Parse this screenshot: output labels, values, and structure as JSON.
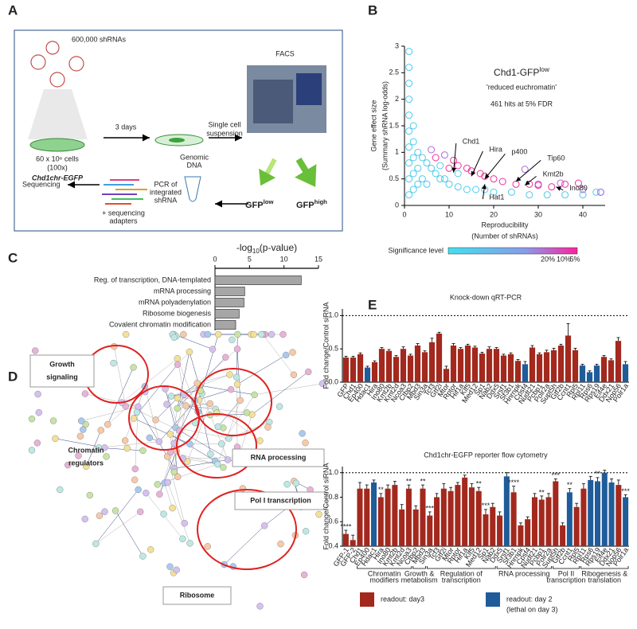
{
  "panel_labels": [
    "A",
    "B",
    "C",
    "D",
    "E"
  ],
  "panel_a": {
    "library": "600,000 shRNAs",
    "cells": "60 x 10⁶ cells",
    "coverage": "(100x)",
    "cell_line": "Chd1chr-EGFP",
    "incubation": "3 days",
    "dissociation": [
      "Single cell",
      "suspension"
    ],
    "facs": "FACS",
    "gfp_low": {
      "text": "GFP",
      "sup": "low"
    },
    "gfp_high": {
      "text": "GFP",
      "sup": "high"
    },
    "genomic": [
      "Genomic",
      "DNA"
    ],
    "pcr": [
      "PCR of",
      "integrated",
      "shRNA"
    ],
    "adapters": [
      "+ sequencing",
      "adapters"
    ],
    "sequencing": "Sequencing"
  },
  "panel_d": {
    "clusters": [
      {
        "lines": [
          "Growth",
          "signaling"
        ],
        "boxed": true
      },
      {
        "lines": [
          "Chromatin",
          "regulators"
        ],
        "boxed": false
      },
      {
        "lines": [
          "RNA processing"
        ],
        "boxed": true
      },
      {
        "lines": [
          "Pol I transcription"
        ],
        "boxed": true
      },
      {
        "lines": [
          "Ribosome"
        ],
        "boxed": true
      }
    ]
  },
  "chart_data": [
    {
      "type": "scatter",
      "title": {
        "text": "Chd1-GFP",
        "sup": "low"
      },
      "subtitle": "'reduced euchromatin'",
      "annotation": "461 hits at 5% FDR",
      "ylabel": [
        "Gene effect size",
        "(Summary shRNA log-odds)"
      ],
      "xlabel": [
        "Reproducibility",
        "(Number of shRNAs)"
      ],
      "xlim": [
        0,
        45
      ],
      "xticks": [
        0,
        10,
        20,
        30,
        40
      ],
      "ylim": [
        0,
        3
      ],
      "yticks": [
        0,
        0.5,
        1,
        1.5,
        2,
        2.5,
        3
      ],
      "series": [
        {
          "color": "#4fc9ef",
          "x": [
            1,
            1,
            1,
            1,
            1,
            1,
            1,
            1,
            1,
            1,
            2,
            2,
            2,
            2,
            2,
            3,
            3,
            3,
            4,
            4,
            5,
            5,
            6,
            7,
            8,
            9,
            10,
            12,
            14,
            16,
            18,
            20,
            24,
            28,
            32,
            36,
            40,
            43,
            44,
            12,
            8
          ],
          "values": [
            2.9,
            2.6,
            2.3,
            2.0,
            1.7,
            1.4,
            1.1,
            0.8,
            0.5,
            0.2,
            1.5,
            1.2,
            0.9,
            0.6,
            0.3,
            1.0,
            0.7,
            0.4,
            0.9,
            0.5,
            0.8,
            0.4,
            0.7,
            0.6,
            0.5,
            0.5,
            0.4,
            0.35,
            0.3,
            0.3,
            0.3,
            0.25,
            0.25,
            0.2,
            0.2,
            0.2,
            0.2,
            0.25,
            0.25,
            0.6,
            0.75
          ]
        },
        {
          "color": "#b066e0",
          "x": [
            6,
            9,
            27,
            30,
            35,
            40,
            44
          ],
          "values": [
            1.05,
            0.95,
            0.68,
            0.4,
            0.42,
            0.3,
            0.25
          ]
        },
        {
          "color": "#f0309a",
          "x": [
            7,
            10,
            11,
            12,
            14,
            15,
            17,
            18,
            20,
            22,
            25,
            28,
            30,
            33,
            36,
            39
          ],
          "values": [
            0.9,
            0.7,
            0.85,
            0.75,
            0.7,
            0.65,
            0.6,
            0.55,
            0.5,
            0.45,
            0.4,
            0.4,
            0.38,
            0.35,
            0.4,
            0.42
          ]
        }
      ],
      "genes": [
        {
          "label": "Chd1",
          "x": 11,
          "y": 0.62
        },
        {
          "label": "Hira",
          "x": 15,
          "y": 0.55
        },
        {
          "label": "p400",
          "x": 18,
          "y": 0.5
        },
        {
          "label": "Tip60",
          "x": 25,
          "y": 0.45
        },
        {
          "label": "Kmt2b",
          "x": 27,
          "y": 0.38
        },
        {
          "label": "Ino80",
          "x": 34,
          "y": 0.35
        },
        {
          "label": "Hat1",
          "x": 18,
          "y": 0.4
        }
      ],
      "colorbar": {
        "title": "Significance level",
        "ticks": [
          "20%",
          "10%",
          "5%"
        ]
      }
    },
    {
      "type": "hbar",
      "xlabel": {
        "text": "-log",
        "sub": "10",
        "rest": "(p-value)"
      },
      "categories": [
        "Reg. of transcription, DNA-templated",
        "mRNA processing",
        "mRNA polyadenylation",
        "Ribosome biogenesis",
        "Covalent chromatin modification"
      ],
      "values": [
        12.5,
        4.3,
        4.2,
        3.5,
        3.0
      ],
      "color": "#a6a6a6",
      "xlim": [
        0,
        15
      ],
      "xticks": [
        0,
        5,
        10,
        15
      ]
    },
    {
      "type": "bar",
      "title": "Knock-down qRT-PCR",
      "ylabel": "Fold change/Control siRNA",
      "reference_line": 1.0,
      "ylim": [
        0,
        1.1
      ],
      "yticks": [
        {
          "value": 0,
          "label": "0.0"
        },
        0.5,
        {
          "value": 1,
          "label": "1.0"
        }
      ],
      "categories": [
        "GFP",
        "Chd1",
        "Ep400",
        "Hdac1",
        "Hira",
        "Ino80",
        "Kmt2b",
        "Kmt2d",
        "Ncoa3",
        "Ctbp2",
        "Mbd3",
        "Sin3a",
        "Tcf3",
        "Gtf2i",
        "Mtor",
        "Rptor",
        "Hif1a",
        "Klf5",
        "Med12",
        "Sp1",
        "Nab2",
        "Ddx5",
        "Srsf1",
        "Sf3b1",
        "Hnrnpk",
        "Cpsf4",
        "Nudt21",
        "Pcbp1",
        "Polr2a",
        "Supt5h",
        "Gtf2b",
        "Ccnt1",
        "Rpl5",
        "Rpl11",
        "Rps6",
        "Rps19",
        "Eif4e",
        "Ddx21",
        "Nop56",
        "Polr1a"
      ],
      "values": [
        0.37,
        0.37,
        0.42,
        0.22,
        0.3,
        0.5,
        0.47,
        0.38,
        0.5,
        0.4,
        0.55,
        0.45,
        0.6,
        0.73,
        0.2,
        0.55,
        0.5,
        0.55,
        0.52,
        0.43,
        0.5,
        0.5,
        0.4,
        0.42,
        0.32,
        0.27,
        0.52,
        0.42,
        0.45,
        0.48,
        0.55,
        0.7,
        0.48,
        0.25,
        0.15,
        0.25,
        0.38,
        0.33,
        0.62,
        0.27
      ],
      "errors": [
        0.02,
        0.02,
        0.02,
        0.02,
        0.02,
        0.02,
        0.02,
        0.02,
        0.03,
        0.02,
        0.03,
        0.02,
        0.06,
        0.02,
        0.04,
        0.03,
        0.02,
        0.02,
        0.02,
        0.02,
        0.03,
        0.02,
        0.02,
        0.02,
        0.02,
        0.04,
        0.03,
        0.02,
        0.03,
        0.03,
        0.02,
        0.18,
        0.03,
        0.02,
        0.02,
        0.02,
        0.02,
        0.02,
        0.05,
        0.04
      ],
      "colors": [
        "#a3281d",
        "#a3281d",
        "#a3281d",
        "#1f5c99",
        "#a3281d",
        "#a3281d",
        "#a3281d",
        "#a3281d",
        "#a3281d",
        "#a3281d",
        "#a3281d",
        "#a3281d",
        "#a3281d",
        "#a3281d",
        "#a3281d",
        "#a3281d",
        "#a3281d",
        "#a3281d",
        "#a3281d",
        "#a3281d",
        "#a3281d",
        "#a3281d",
        "#a3281d",
        "#a3281d",
        "#a3281d",
        "#1f5c99",
        "#a3281d",
        "#a3281d",
        "#a3281d",
        "#a3281d",
        "#a3281d",
        "#a3281d",
        "#a3281d",
        "#1f5c99",
        "#1f5c99",
        "#1f5c99",
        "#a3281d",
        "#a3281d",
        "#a3281d",
        "#1f5c99"
      ]
    },
    {
      "type": "bar",
      "title": "Chd1chr-EGFP reporter flow cytometry",
      "ylabel": "Fold change/Control siRNA",
      "reference_line": 1.0,
      "ylim": [
        0.4,
        1.05
      ],
      "yticks": [
        0.4,
        0.6,
        0.8,
        {
          "value": 1,
          "label": "1.0"
        }
      ],
      "categories": [
        "GFP-1",
        "GFP-2",
        "Chd1",
        "Ep400",
        "Hdac1",
        "Hira",
        "Ino80",
        "Kmt2b",
        "Kmt2d",
        "Ncoa3",
        "Ctbp2",
        "Mbd3",
        "Sin3a",
        "Tcf3",
        "Gtf2i",
        "Mtor",
        "Rptor",
        "Hif1a",
        "Klf5",
        "Med12",
        "Sp1",
        "Nab2",
        "Ddx5",
        "Srsf1",
        "Sf3b1",
        "Hnrnpk",
        "Cpsf4",
        "Nudt21",
        "Pcbp1",
        "Polr2a",
        "Supt5h",
        "Gtf2b",
        "Ccnt1",
        "Rpl5",
        "Rpl11",
        "Rps6",
        "Rps19",
        "Eif4e",
        "Ddx21",
        "Nop56",
        "Polr1a"
      ],
      "values": [
        0.5,
        0.45,
        0.87,
        0.87,
        0.92,
        0.8,
        0.87,
        0.9,
        0.7,
        0.87,
        0.7,
        0.87,
        0.65,
        0.8,
        0.87,
        0.85,
        0.9,
        0.96,
        0.88,
        0.85,
        0.66,
        0.72,
        0.65,
        0.97,
        0.84,
        0.57,
        0.62,
        0.8,
        0.78,
        0.8,
        0.93,
        0.57,
        0.84,
        0.72,
        0.87,
        0.94,
        0.93,
        1.0,
        0.92,
        0.9,
        0.8
      ],
      "errors": [
        0.03,
        0.04,
        0.05,
        0.03,
        0.02,
        0.03,
        0.03,
        0.03,
        0.04,
        0.03,
        0.03,
        0.03,
        0.03,
        0.03,
        0.04,
        0.03,
        0.02,
        0.02,
        0.03,
        0.03,
        0.04,
        0.03,
        0.03,
        0.03,
        0.05,
        0.02,
        0.02,
        0.03,
        0.03,
        0.03,
        0.02,
        0.02,
        0.03,
        0.03,
        0.04,
        0.03,
        0.03,
        0.02,
        0.03,
        0.04,
        0.02
      ],
      "colors": [
        "#a3281d",
        "#a3281d",
        "#a3281d",
        "#a3281d",
        "#1f5c99",
        "#a3281d",
        "#a3281d",
        "#a3281d",
        "#a3281d",
        "#a3281d",
        "#a3281d",
        "#a3281d",
        "#a3281d",
        "#a3281d",
        "#a3281d",
        "#a3281d",
        "#a3281d",
        "#a3281d",
        "#a3281d",
        "#a3281d",
        "#a3281d",
        "#a3281d",
        "#a3281d",
        "#1f5c99",
        "#a3281d",
        "#a3281d",
        "#a3281d",
        "#a3281d",
        "#a3281d",
        "#a3281d",
        "#a3281d",
        "#a3281d",
        "#1f5c99",
        "#a3281d",
        "#a3281d",
        "#1f5c99",
        "#1f5c99",
        "#1f5c99",
        "#1f5c99",
        "#a3281d",
        "#1f5c99"
      ],
      "significance": [
        "****",
        null,
        null,
        null,
        null,
        "**",
        null,
        null,
        null,
        "**",
        null,
        "**",
        "***",
        null,
        null,
        null,
        null,
        null,
        null,
        "**",
        "***",
        null,
        null,
        null,
        "****",
        null,
        null,
        null,
        "**",
        null,
        "***",
        null,
        "**",
        null,
        null,
        null,
        "**",
        null,
        null,
        null,
        "***"
      ],
      "groups": [
        {
          "lines": [
            "Chromatin",
            "modifiers"
          ],
          "start": 2,
          "end": 9
        },
        {
          "lines": [
            "Growth &",
            "metabolism"
          ],
          "start": 10,
          "end": 11
        },
        {
          "lines": [
            "Regulation of",
            "transcription"
          ],
          "start": 12,
          "end": 21
        },
        {
          "lines": [
            "RNA processing"
          ],
          "start": 22,
          "end": 29
        },
        {
          "lines": [
            "Pol II",
            "transcription"
          ],
          "start": 30,
          "end": 33
        },
        {
          "lines": [
            "Ribogenesis &",
            "translation"
          ],
          "start": 34,
          "end": 40
        }
      ]
    }
  ],
  "legend": [
    {
      "lines": [
        "readout: day3"
      ],
      "color": "#a3281d"
    },
    {
      "lines": [
        "readout: day 2",
        "(lethal on day 3)"
      ],
      "color": "#1f5c99"
    }
  ]
}
